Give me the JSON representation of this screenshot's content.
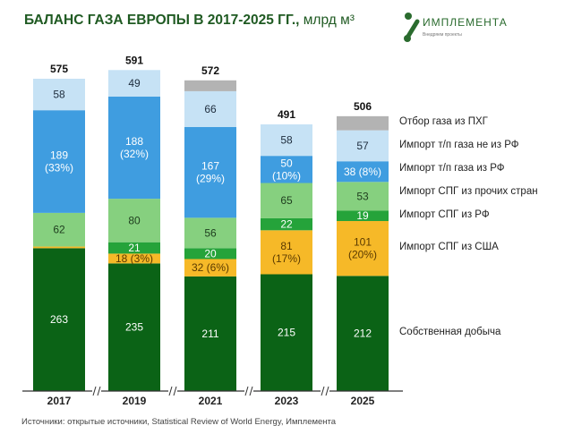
{
  "title": "БАЛАНС ГАЗА ЕВРОПЫ В 2017-2025 ГГ.,",
  "unit": "млрд м³",
  "logo": {
    "name": "ИМПЛЕМЕНТА",
    "tagline": "Внедряем проекты"
  },
  "source": "Источники: открытые источники, Statistical Review of World Energy, Имплемента",
  "chart_data": {
    "type": "bar",
    "stacked": true,
    "title": "БАЛАНС ГАЗА ЕВРОПЫ В 2017-2025 ГГ., млрд м³",
    "categories": [
      "2017",
      "2019",
      "2021",
      "2023",
      "2025"
    ],
    "totals": [
      575,
      591,
      572,
      491,
      506
    ],
    "legend_position": "right",
    "grid": false,
    "series": [
      {
        "name": "Собственная добыча",
        "color": "#0b6316",
        "text_color": "#ffffff",
        "values": [
          263,
          235,
          211,
          215,
          212
        ],
        "labels": [
          "263",
          "235",
          "211",
          "215",
          "212"
        ]
      },
      {
        "name": "Импорт СПГ из США",
        "color": "#f6b928",
        "text_color": "#5a3a00",
        "values": [
          3,
          18,
          32,
          81,
          101
        ],
        "labels": [
          "",
          "18 (3%)",
          "32 (6%)",
          "81\n(17%)",
          "101\n(20%)"
        ]
      },
      {
        "name": "Импорт СПГ из РФ",
        "color": "#25a33a",
        "text_color": "#ffffff",
        "values": [
          0,
          21,
          20,
          22,
          19
        ],
        "labels": [
          "",
          "21",
          "20",
          "22",
          "19"
        ]
      },
      {
        "name": "Импорт СПГ из прочих стран",
        "color": "#86d07f",
        "text_color": "#1e3d1e",
        "values": [
          62,
          80,
          56,
          65,
          53
        ],
        "labels": [
          "62",
          "80",
          "56",
          "65",
          "53"
        ]
      },
      {
        "name": "Импорт т/п газа из РФ",
        "color": "#3f9de0",
        "text_color": "#ffffff",
        "values": [
          189,
          188,
          167,
          50,
          38
        ],
        "labels": [
          "189\n(33%)",
          "188\n(32%)",
          "167\n(29%)",
          "50\n(10%)",
          "38 (8%)"
        ]
      },
      {
        "name": "Импорт т/п газа не из РФ",
        "color": "#c6e2f5",
        "text_color": "#1e2d3d",
        "values": [
          58,
          49,
          66,
          58,
          57
        ],
        "labels": [
          "58",
          "49",
          "66",
          "58",
          "57"
        ]
      },
      {
        "name": "Отбор газа из ПХГ",
        "color": "#b3b3b3",
        "text_color": "#333333",
        "values": [
          0,
          0,
          20,
          0,
          26
        ],
        "labels": [
          "",
          "",
          "",
          "",
          ""
        ]
      }
    ]
  }
}
